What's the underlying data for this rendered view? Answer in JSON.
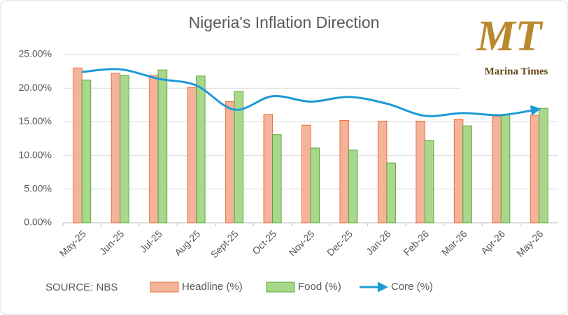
{
  "chart_data": {
    "type": "bar-line",
    "title": "Nigeria's Inflation Direction",
    "categories": [
      "May-25",
      "Jun-25",
      "Jul-25",
      "Aug-25",
      "Sept-25",
      "Oct-25",
      "Nov-25",
      "Dec-25",
      "Jan-26",
      "Feb-26",
      "Mar-26",
      "Apr-26",
      "May-26"
    ],
    "series": [
      {
        "name": "Headline (%)",
        "type": "bar",
        "color": "#f4b39a",
        "stroke": "#e9733f",
        "values": [
          23.0,
          22.2,
          21.9,
          20.1,
          18.0,
          16.1,
          14.5,
          15.2,
          15.1,
          15.1,
          15.4,
          15.8,
          16.0
        ]
      },
      {
        "name": "Food (%)",
        "type": "bar",
        "color": "#a9d88c",
        "stroke": "#5aa83a",
        "values": [
          21.2,
          21.9,
          22.7,
          21.8,
          19.5,
          13.1,
          11.1,
          10.8,
          8.9,
          12.2,
          14.4,
          16.1,
          17.0
        ]
      },
      {
        "name": "Core (%)",
        "type": "line",
        "color": "#1d9ad6",
        "values": [
          22.4,
          22.8,
          21.4,
          20.4,
          16.8,
          18.8,
          18.0,
          18.7,
          17.7,
          15.9,
          16.3,
          16.0,
          16.9
        ]
      }
    ],
    "ylim": [
      0,
      25
    ],
    "yticks": [
      {
        "value": 0,
        "label": "0.00%"
      },
      {
        "value": 5,
        "label": "5.00%"
      },
      {
        "value": 10,
        "label": "10.00%"
      },
      {
        "value": 15,
        "label": "15.00%"
      },
      {
        "value": 20,
        "label": "20.00%"
      },
      {
        "value": 25,
        "label": "25.00%"
      }
    ],
    "grid": true,
    "legend": "bottom",
    "source": "SOURCE: NBS"
  },
  "logo": {
    "mark": "MT",
    "name": "Marina Times"
  }
}
